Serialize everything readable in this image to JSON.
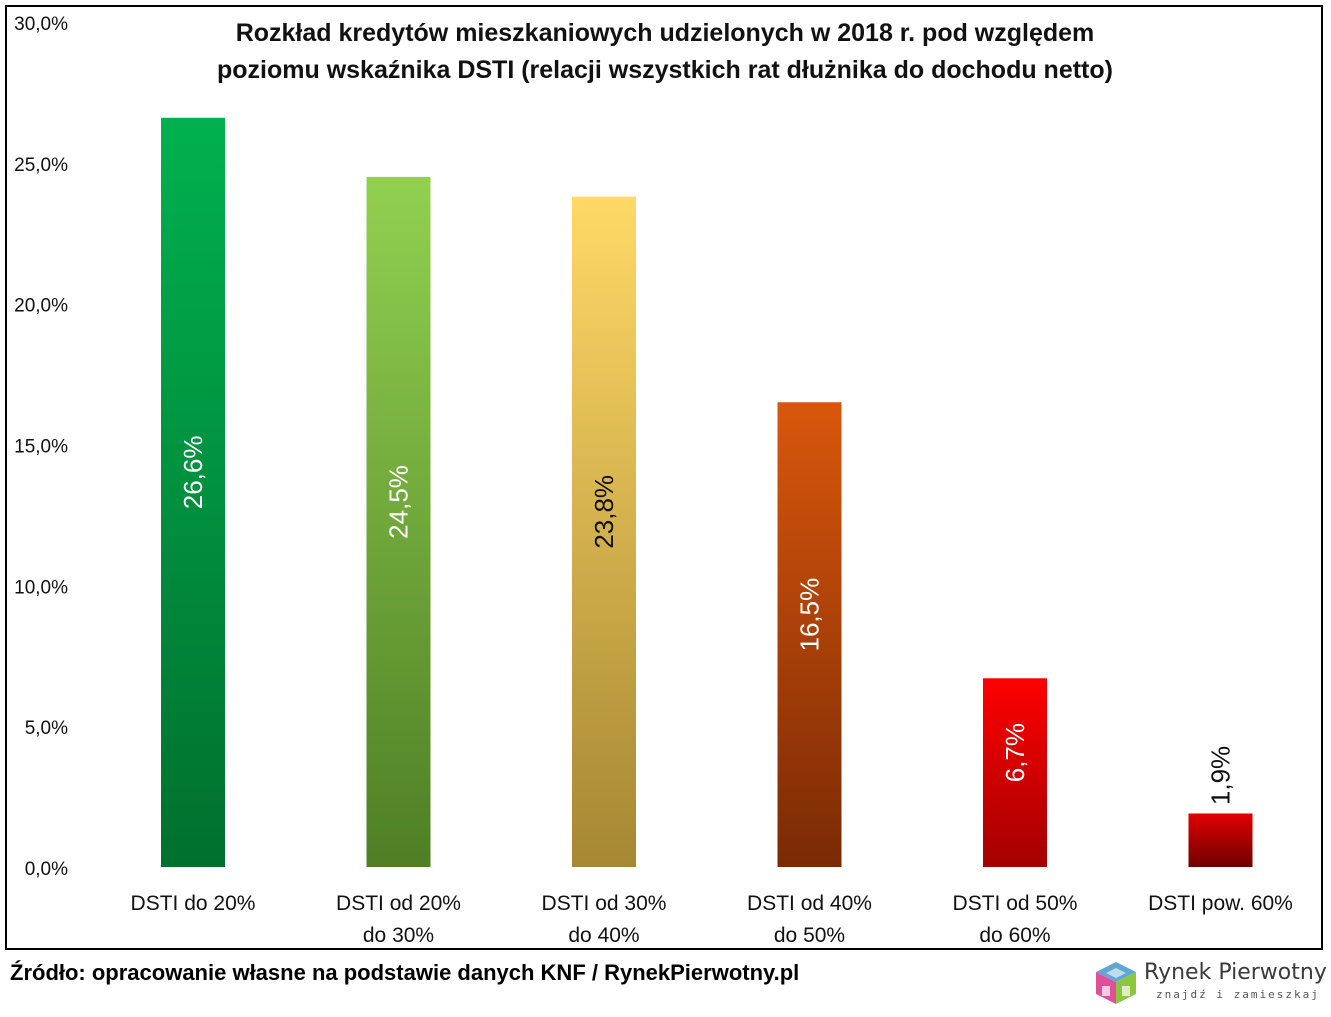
{
  "chart_data": {
    "type": "bar",
    "title_lines": [
      "Rozkład kredytów mieszkaniowych udzielonych w 2018 r. pod względem",
      "poziomu wskaźnika DSTI (relacji wszystkich rat dłużnika do dochodu netto)"
    ],
    "categories": [
      [
        "DSTI do 20%"
      ],
      [
        "DSTI od 20%",
        "do 30%"
      ],
      [
        "DSTI od 30%",
        "do 40%"
      ],
      [
        "DSTI od 40%",
        "do 50%"
      ],
      [
        "DSTI od 50%",
        "do 60%"
      ],
      [
        "DSTI pow. 60%"
      ]
    ],
    "values": [
      26.6,
      24.5,
      23.8,
      16.5,
      6.7,
      1.9
    ],
    "data_labels": [
      "26,6%",
      "24,5%",
      "23,8%",
      "16,5%",
      "6,7%",
      "1,9%"
    ],
    "ylim": [
      0,
      30
    ],
    "yticks": [
      0,
      5,
      10,
      15,
      20,
      25,
      30
    ],
    "ytick_labels": [
      "0,0%",
      "5,0%",
      "10,0%",
      "15,0%",
      "20,0%",
      "25,0%",
      "30,0%"
    ],
    "grid": false,
    "bar_gradients": [
      [
        "#00b14f",
        "#00702e"
      ],
      [
        "#92d050",
        "#4e7f25"
      ],
      [
        "#ffd966",
        "#a68733"
      ],
      [
        "#d9570c",
        "#7a2a05"
      ],
      [
        "#ff0000",
        "#a30000"
      ],
      [
        "#e00000",
        "#700000"
      ]
    ],
    "label_colors": [
      "#ffffff",
      "#ffffff",
      "#111111",
      "#ffffff",
      "#ffffff",
      "#111111"
    ]
  },
  "source": "Źródło: opracowanie własne na podstawie danych KNF / RynekPierwotny.pl",
  "brand": {
    "name": "Rynek Pierwotny",
    "tagline": "znajdź i zamieszkaj"
  }
}
